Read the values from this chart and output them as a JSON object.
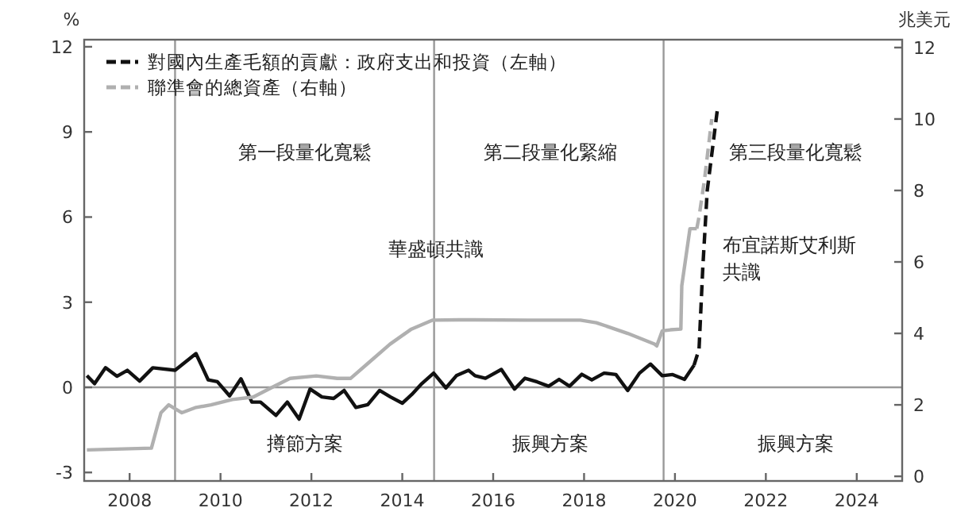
{
  "chart_data": {
    "type": "line",
    "ylabel": "%",
    "y2label": "兆美元",
    "xlim": [
      2007,
      2025
    ],
    "xticks": [
      2008,
      2010,
      2012,
      2014,
      2016,
      2018,
      2020,
      2022,
      2024
    ],
    "ylim": [
      -3.3,
      12.25
    ],
    "yticks": [
      -3,
      0,
      3,
      6,
      9,
      12
    ],
    "y2lim": [
      -0.13,
      12.22
    ],
    "y2ticks": [
      0,
      2,
      4,
      6,
      8,
      10,
      12
    ],
    "legend": "top left",
    "grid": false,
    "marker": "none",
    "series": [
      {
        "color": "#111111",
        "line_style": "solid",
        "x": [
          2007.06,
          2007.23,
          2007.47,
          2007.72,
          2007.95,
          2008.22,
          2008.51,
          2009.0,
          2009.46,
          2009.73,
          2009.93,
          2010.2,
          2010.45,
          2010.69,
          2010.88,
          2011.22,
          2011.47,
          2011.73,
          2011.97,
          2012.23,
          2012.49,
          2012.72,
          2012.98,
          2013.24,
          2013.5,
          2013.74,
          2014.0,
          2014.21,
          2014.43,
          2014.69,
          2014.96,
          2015.19,
          2015.46,
          2015.6,
          2015.83,
          2016.18,
          2016.47,
          2016.7,
          2016.97,
          2017.22,
          2017.45,
          2017.68,
          2017.95,
          2018.17,
          2018.44,
          2018.7,
          2018.96,
          2019.22,
          2019.46,
          2019.72,
          2019.95,
          2020.21,
          2020.42
        ],
        "values": [
          0.41,
          0.13,
          0.69,
          0.39,
          0.6,
          0.22,
          0.69,
          0.6,
          1.19,
          0.26,
          0.2,
          -0.3,
          0.3,
          -0.52,
          -0.52,
          -0.99,
          -0.52,
          -1.12,
          -0.06,
          -0.34,
          -0.39,
          -0.11,
          -0.71,
          -0.61,
          -0.11,
          -0.34,
          -0.56,
          -0.25,
          0.13,
          0.5,
          -0.02,
          0.41,
          0.6,
          0.41,
          0.32,
          0.63,
          -0.06,
          0.32,
          0.19,
          0.04,
          0.28,
          0.04,
          0.46,
          0.26,
          0.5,
          0.45,
          -0.11,
          0.5,
          0.82,
          0.41,
          0.45,
          0.28,
          0.78
        ]
      },
      {
        "name": "對國內生產毛額的貢獻：政府支出和投資（左軸）",
        "color": "#111111",
        "line_style": "dashed",
        "x": [
          2020.42,
          2020.53,
          2020.61,
          2020.71,
          2020.94
        ],
        "values": [
          0.78,
          1.34,
          4.13,
          6.93,
          9.87
        ]
      },
      {
        "color": "#b0b0b0",
        "line_style": "solid",
        "axis": "y2",
        "x": [
          2007.06,
          2008.48,
          2008.69,
          2008.86,
          2009.15,
          2009.44,
          2009.79,
          2010.26,
          2010.72,
          2011.18,
          2011.53,
          2012.11,
          2012.57,
          2012.86,
          2013.27,
          2013.73,
          2014.2,
          2014.66,
          2015.24,
          2015.6,
          2016.76,
          2017.92,
          2018.27,
          2018.96,
          2019.55,
          2019.6,
          2019.72,
          2019.9,
          2020.13,
          2020.15,
          2020.33,
          2020.48
        ],
        "values": [
          0.74,
          0.79,
          1.78,
          2.0,
          1.78,
          1.92,
          2.0,
          2.15,
          2.22,
          2.52,
          2.74,
          2.81,
          2.74,
          2.74,
          3.19,
          3.7,
          4.12,
          4.37,
          4.38,
          4.38,
          4.37,
          4.37,
          4.3,
          4.0,
          3.7,
          3.65,
          4.07,
          4.1,
          4.12,
          5.33,
          6.93,
          6.93
        ]
      },
      {
        "name": "聯準會的總資產（右軸）",
        "color": "#b0b0b0",
        "line_style": "dashed",
        "axis": "y2",
        "x": [
          2020.48,
          2020.53,
          2020.65,
          2020.81
        ],
        "values": [
          6.93,
          7.26,
          8.3,
          10.0
        ]
      }
    ],
    "ref_lines": [
      {
        "axis": "y",
        "value": 0,
        "color": "#999999"
      },
      {
        "axis": "x",
        "value": 2009.0,
        "color": "#999999"
      },
      {
        "axis": "x",
        "value": 2014.7,
        "color": "#999999"
      },
      {
        "axis": "x",
        "value": 2019.75,
        "color": "#999999"
      }
    ],
    "annotations": [
      "第一段量化寬鬆",
      "第二段量化緊縮",
      "第三段量化寬鬆",
      "華盛頓共識",
      "布宜諾斯艾利斯共識",
      "撙節方案",
      "振興方案",
      "振興方案"
    ]
  }
}
